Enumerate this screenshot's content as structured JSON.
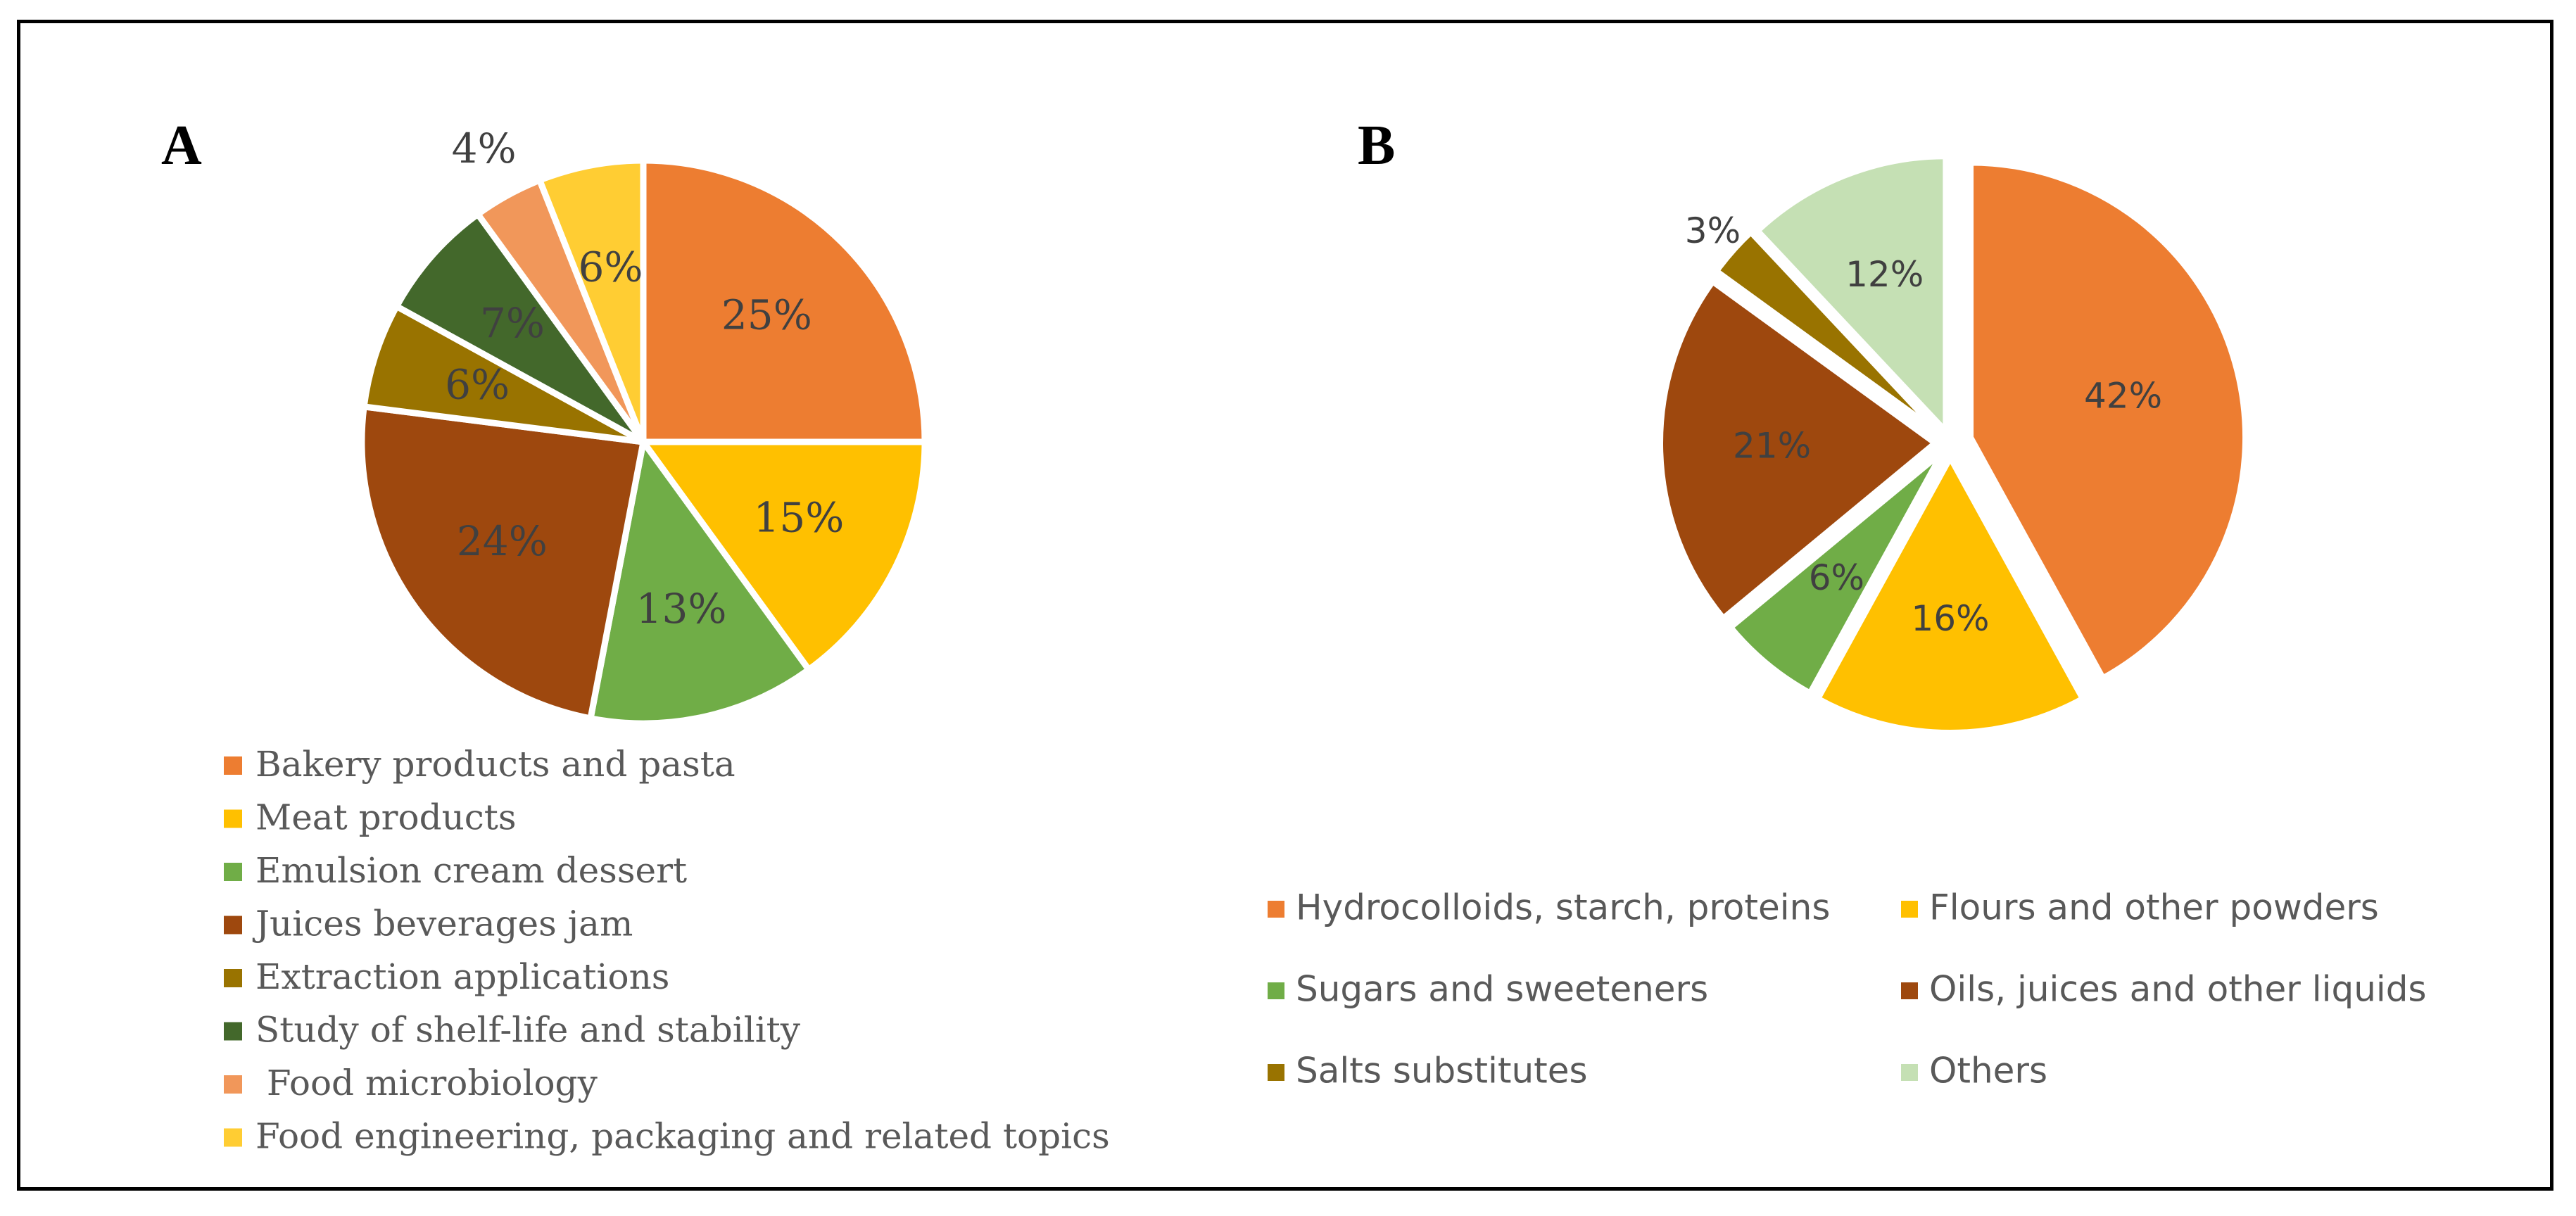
{
  "figure": {
    "panel_a_letter": "A",
    "panel_b_letter": "B"
  },
  "chart_data": [
    {
      "type": "pie",
      "panel": "A",
      "title": "",
      "categories": [
        "Bakery products and pasta",
        "Meat products",
        "Emulsion cream dessert",
        "Juices beverages jam",
        "Extraction applications",
        "Study of shelf-life and stability",
        " Food microbiology",
        "Food engineering, packaging and related topics"
      ],
      "values": [
        25,
        15,
        13,
        24,
        6,
        7,
        4,
        6
      ],
      "labels": [
        "25%",
        "15%",
        "13%",
        "24%",
        "6%",
        "7%",
        "4%",
        "6%"
      ],
      "colors": [
        "#ED7D31",
        "#FFC000",
        "#70AD47",
        "#9E480E",
        "#997300",
        "#43682B",
        "#F1975A",
        "#FFCD33"
      ],
      "label_colors": [
        "#404040",
        "#404040",
        "#404040",
        "#404040",
        "#404040",
        "#404040",
        "#404040",
        "#404040"
      ],
      "legend_position": "bottom"
    },
    {
      "type": "pie",
      "panel": "B",
      "title": "",
      "categories": [
        "Hydrocolloids, starch, proteins",
        "Flours and other powders",
        "Sugars and sweeteners",
        "Oils, juices and other liquids",
        "Salts substitutes",
        "Others"
      ],
      "values": [
        42,
        16,
        6,
        21,
        3,
        12
      ],
      "labels": [
        "42%",
        "16%",
        "6%",
        "21%",
        "3%",
        "12%"
      ],
      "colors": [
        "#ED7D31",
        "#FFC000",
        "#70AD47",
        "#9E480E",
        "#997300",
        "#C5E0B4"
      ],
      "label_colors": [
        "#404040",
        "#404040",
        "#404040",
        "#404040",
        "#404040",
        "#404040"
      ],
      "legend_position": "bottom"
    }
  ]
}
